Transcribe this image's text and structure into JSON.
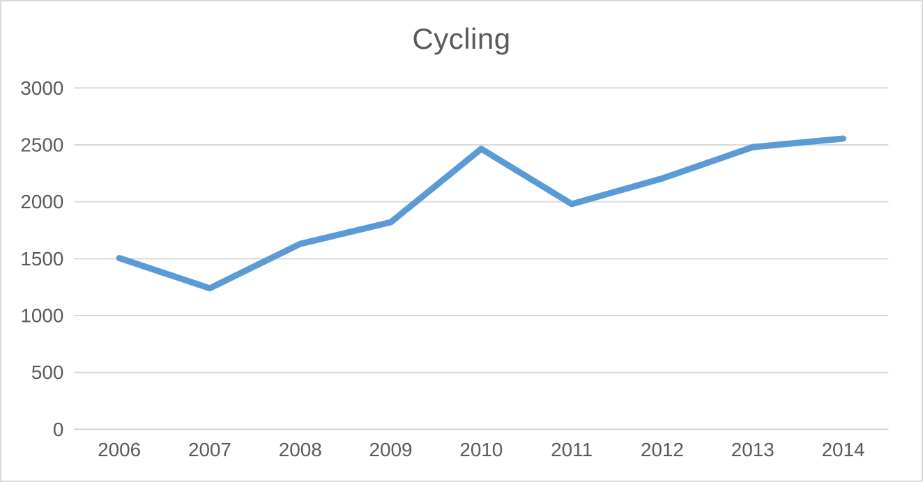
{
  "chart_data": {
    "type": "line",
    "title": "Cycling",
    "categories": [
      "2006",
      "2007",
      "2008",
      "2009",
      "2010",
      "2011",
      "2012",
      "2013",
      "2014"
    ],
    "series": [
      {
        "name": "Cycling",
        "values": [
          1505,
          1240,
          1630,
          1820,
          2465,
          1980,
          2205,
          2480,
          2555
        ]
      }
    ],
    "xlabel": "",
    "ylabel": "",
    "ylim": [
      0,
      3000
    ],
    "ytick_interval": 500,
    "ytick_labels": [
      "0",
      "500",
      "1000",
      "1500",
      "2000",
      "2500",
      "3000"
    ],
    "grid": "horizontal-only",
    "legend_position": "none",
    "colors": {
      "line": "#5b9bd5",
      "gridline": "#d9d9d9",
      "axis_line": "#d4d4d4",
      "text": "#595959",
      "frame_border": "#d9d9d9",
      "background": "#ffffff"
    }
  }
}
